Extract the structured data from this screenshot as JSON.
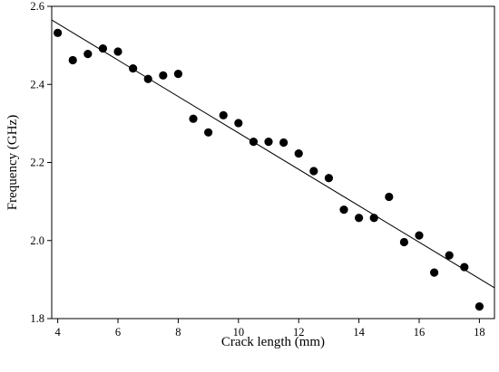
{
  "chart_data": {
    "type": "scatter",
    "title": "",
    "xlabel": "Crack length (mm)",
    "ylabel": "Frequency (GHz)",
    "xlim": [
      3.8,
      18.5
    ],
    "ylim": [
      1.8,
      2.6
    ],
    "x_ticks": [
      4,
      6,
      8,
      10,
      12,
      14,
      16,
      18
    ],
    "y_ticks": [
      1.8,
      2.0,
      2.2,
      2.4,
      2.6
    ],
    "x_tick_labels": [
      "4",
      "6",
      "8",
      "10",
      "12",
      "14",
      "16",
      "18"
    ],
    "y_tick_labels": [
      "1.8",
      "2.0",
      "2.2",
      "2.4",
      "2.6"
    ],
    "grid": false,
    "marker_color": "#000000",
    "line_color": "#000000",
    "points": [
      {
        "x": 4.0,
        "y": 2.532
      },
      {
        "x": 4.5,
        "y": 2.462
      },
      {
        "x": 5.0,
        "y": 2.478
      },
      {
        "x": 5.5,
        "y": 2.492
      },
      {
        "x": 6.0,
        "y": 2.484
      },
      {
        "x": 6.5,
        "y": 2.441
      },
      {
        "x": 7.0,
        "y": 2.414
      },
      {
        "x": 7.5,
        "y": 2.423
      },
      {
        "x": 8.0,
        "y": 2.427
      },
      {
        "x": 8.5,
        "y": 2.312
      },
      {
        "x": 9.0,
        "y": 2.277
      },
      {
        "x": 9.5,
        "y": 2.321
      },
      {
        "x": 10.0,
        "y": 2.301
      },
      {
        "x": 10.5,
        "y": 2.253
      },
      {
        "x": 11.0,
        "y": 2.253
      },
      {
        "x": 11.5,
        "y": 2.251
      },
      {
        "x": 12.0,
        "y": 2.223
      },
      {
        "x": 12.5,
        "y": 2.178
      },
      {
        "x": 13.0,
        "y": 2.16
      },
      {
        "x": 13.5,
        "y": 2.079
      },
      {
        "x": 14.0,
        "y": 2.058
      },
      {
        "x": 14.5,
        "y": 2.058
      },
      {
        "x": 15.0,
        "y": 2.112
      },
      {
        "x": 15.5,
        "y": 1.996
      },
      {
        "x": 16.0,
        "y": 2.013
      },
      {
        "x": 16.5,
        "y": 1.918
      },
      {
        "x": 17.0,
        "y": 1.962
      },
      {
        "x": 17.5,
        "y": 1.932
      },
      {
        "x": 18.0,
        "y": 1.831
      }
    ],
    "fit_line": {
      "x": [
        3.8,
        18.5
      ],
      "y": [
        2.565,
        1.879
      ]
    }
  }
}
